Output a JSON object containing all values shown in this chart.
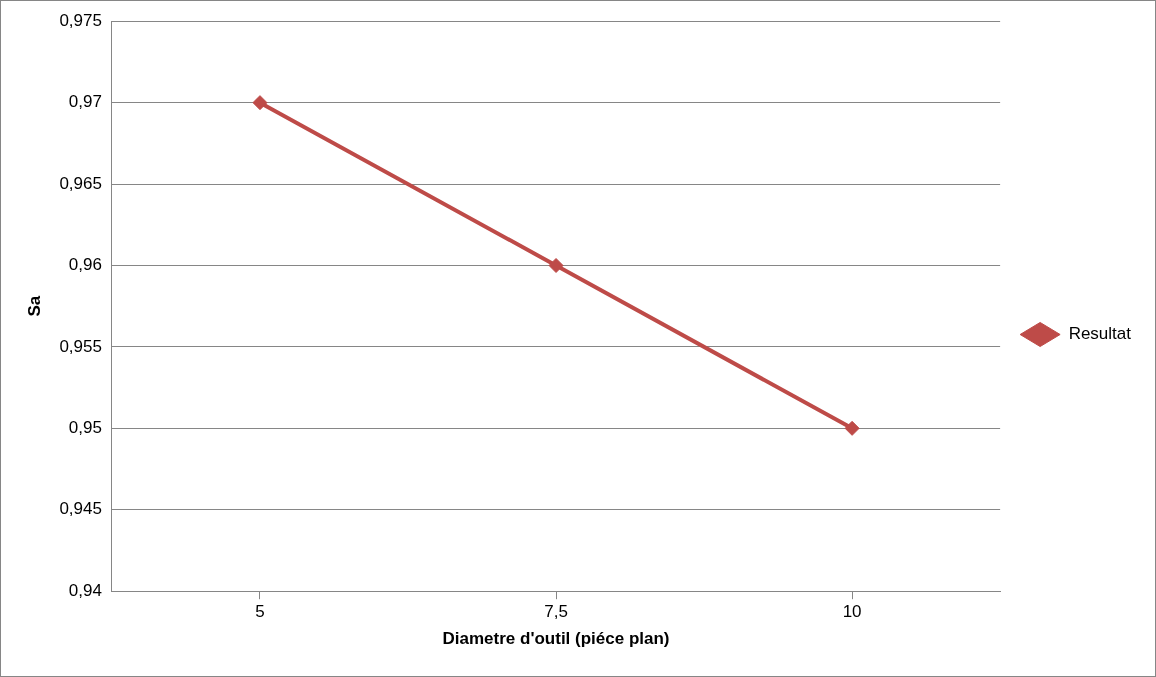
{
  "chart_data": {
    "type": "line",
    "xlabel": "Diametre d'outil (piéce plan)",
    "ylabel": "Sa",
    "categories": [
      "5",
      "7,5",
      "10"
    ],
    "series": [
      {
        "name": "Resultat",
        "color": "#be4b48",
        "values": [
          0.97,
          0.96,
          0.95
        ]
      }
    ],
    "ylim": [
      0.94,
      0.975
    ],
    "yticks": [
      {
        "value": 0.94,
        "label": "0,94"
      },
      {
        "value": 0.945,
        "label": "0,945"
      },
      {
        "value": 0.95,
        "label": "0,95"
      },
      {
        "value": 0.955,
        "label": "0,955"
      },
      {
        "value": 0.96,
        "label": "0,96"
      },
      {
        "value": 0.965,
        "label": "0,965"
      },
      {
        "value": 0.97,
        "label": "0,97"
      },
      {
        "value": 0.975,
        "label": "0,975"
      }
    ],
    "grid": "y",
    "legend": "right",
    "marker": "diamond",
    "line_style": "solid"
  }
}
